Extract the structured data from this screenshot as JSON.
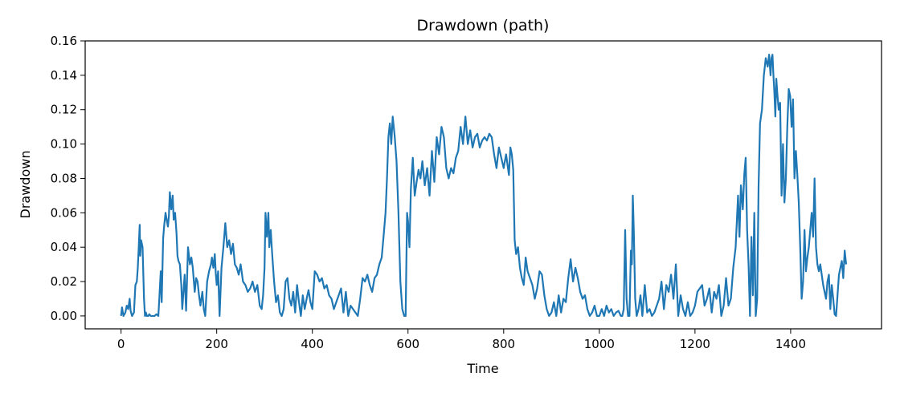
{
  "chart_data": {
    "type": "line",
    "title": "Drawdown (path)",
    "xlabel": "Time",
    "ylabel": "Drawdown",
    "xlim": [
      -75,
      1590
    ],
    "ylim": [
      -0.0075,
      0.16
    ],
    "xticks": [
      0,
      200,
      400,
      600,
      800,
      1000,
      1200,
      1400
    ],
    "yticks": [
      0.0,
      0.02,
      0.04,
      0.06,
      0.08,
      0.1,
      0.12,
      0.14,
      0.16
    ],
    "ytick_labels": [
      "0.00",
      "0.02",
      "0.04",
      "0.06",
      "0.08",
      "0.10",
      "0.12",
      "0.14",
      "0.16"
    ],
    "grid": false,
    "color": "#1f77b4",
    "series": [
      {
        "x": [
          0,
          2,
          5,
          9,
          12,
          15,
          18,
          20,
          23,
          27,
          30,
          33,
          35,
          37,
          39,
          40,
          42,
          45,
          48,
          50,
          52,
          54,
          57,
          59,
          62,
          66,
          70,
          74,
          78,
          80,
          83,
          85,
          88,
          90,
          93,
          96,
          98,
          100,
          102,
          105,
          108,
          110,
          113,
          116,
          118,
          120,
          123,
          126,
          128,
          130,
          133,
          136,
          140,
          144,
          147,
          150,
          154,
          157,
          160,
          163,
          166,
          170,
          173,
          176,
          180,
          184,
          188,
          190,
          193,
          196,
          198,
          200,
          203,
          206,
          210,
          214,
          218,
          222,
          226,
          230,
          234,
          238,
          242,
          246,
          250,
          255,
          260,
          265,
          270,
          275,
          280,
          285,
          290,
          294,
          297,
          300,
          302,
          305,
          308,
          310,
          313,
          316,
          320,
          324,
          328,
          332,
          336,
          340,
          344,
          348,
          352,
          356,
          360,
          364,
          368,
          372,
          376,
          380,
          384,
          388,
          392,
          396,
          400,
          405,
          410,
          415,
          420,
          425,
          430,
          435,
          440,
          445,
          450,
          455,
          460,
          465,
          470,
          475,
          480,
          485,
          490,
          495,
          500,
          505,
          510,
          515,
          520,
          525,
          530,
          535,
          540,
          545,
          550,
          553,
          556,
          559,
          562,
          565,
          568,
          572,
          576,
          580,
          584,
          588,
          592,
          595,
          598,
          600,
          603,
          606,
          610,
          614,
          618,
          622,
          626,
          630,
          635,
          640,
          645,
          650,
          655,
          660,
          665,
          670,
          675,
          680,
          685,
          690,
          695,
          700,
          705,
          710,
          715,
          720,
          725,
          730,
          735,
          740,
          745,
          750,
          755,
          760,
          765,
          770,
          775,
          780,
          785,
          790,
          795,
          800,
          805,
          808,
          811,
          814,
          817,
          820,
          823,
          826,
          830,
          834,
          838,
          842,
          846,
          850,
          855,
          860,
          865,
          870,
          875,
          880,
          885,
          890,
          895,
          900,
          905,
          910,
          915,
          920,
          925,
          930,
          935,
          940,
          945,
          950,
          955,
          960,
          965,
          970,
          975,
          980,
          985,
          990,
          995,
          1000,
          1005,
          1010,
          1015,
          1020,
          1025,
          1030,
          1035,
          1040,
          1045,
          1048,
          1051,
          1054,
          1057,
          1060,
          1063,
          1066,
          1068,
          1070,
          1072,
          1075,
          1078,
          1082,
          1086,
          1090,
          1095,
          1100,
          1105,
          1110,
          1115,
          1120,
          1125,
          1130,
          1135,
          1140,
          1145,
          1150,
          1155,
          1160,
          1165,
          1170,
          1175,
          1180,
          1185,
          1190,
          1195,
          1200,
          1205,
          1210,
          1215,
          1220,
          1225,
          1230,
          1235,
          1240,
          1245,
          1250,
          1255,
          1260,
          1265,
          1270,
          1275,
          1280,
          1285,
          1290,
          1293,
          1296,
          1300,
          1303,
          1306,
          1309,
          1312,
          1315,
          1318,
          1321,
          1324,
          1327,
          1330,
          1333,
          1336,
          1340,
          1344,
          1348,
          1352,
          1355,
          1358,
          1360,
          1362,
          1364,
          1366,
          1368,
          1370,
          1372,
          1375,
          1378,
          1381,
          1384,
          1387,
          1390,
          1393,
          1396,
          1399,
          1402,
          1405,
          1408,
          1411,
          1414,
          1417,
          1420,
          1423,
          1426,
          1429,
          1432,
          1435,
          1438,
          1441,
          1444,
          1447,
          1450,
          1453,
          1456,
          1459,
          1462,
          1465,
          1468,
          1471,
          1474,
          1477,
          1480,
          1483,
          1486,
          1489,
          1492,
          1495,
          1498,
          1501,
          1504,
          1507,
          1510,
          1513,
          1516
        ],
        "values": [
          0.0,
          0.005,
          0.0,
          0.002,
          0.006,
          0.004,
          0.01,
          0.003,
          0.0,
          0.002,
          0.018,
          0.02,
          0.028,
          0.04,
          0.053,
          0.035,
          0.044,
          0.04,
          0.01,
          0.0,
          0.002,
          0.0,
          0.0,
          0.001,
          0.0,
          0.0,
          0.0,
          0.001,
          0.0,
          0.01,
          0.026,
          0.008,
          0.045,
          0.052,
          0.06,
          0.055,
          0.052,
          0.058,
          0.072,
          0.062,
          0.07,
          0.056,
          0.06,
          0.048,
          0.035,
          0.032,
          0.03,
          0.018,
          0.004,
          0.012,
          0.024,
          0.003,
          0.04,
          0.03,
          0.034,
          0.028,
          0.014,
          0.022,
          0.02,
          0.012,
          0.006,
          0.014,
          0.004,
          0.0,
          0.02,
          0.026,
          0.03,
          0.034,
          0.028,
          0.036,
          0.025,
          0.018,
          0.026,
          0.0,
          0.028,
          0.04,
          0.054,
          0.04,
          0.044,
          0.036,
          0.042,
          0.03,
          0.028,
          0.024,
          0.03,
          0.02,
          0.018,
          0.014,
          0.016,
          0.02,
          0.014,
          0.018,
          0.006,
          0.004,
          0.012,
          0.028,
          0.06,
          0.046,
          0.06,
          0.04,
          0.05,
          0.036,
          0.02,
          0.008,
          0.012,
          0.002,
          0.0,
          0.004,
          0.02,
          0.022,
          0.01,
          0.006,
          0.014,
          0.002,
          0.018,
          0.008,
          0.0,
          0.012,
          0.004,
          0.01,
          0.015,
          0.008,
          0.004,
          0.026,
          0.024,
          0.02,
          0.022,
          0.016,
          0.018,
          0.012,
          0.01,
          0.004,
          0.008,
          0.012,
          0.016,
          0.002,
          0.014,
          0.0,
          0.006,
          0.004,
          0.002,
          0.0,
          0.01,
          0.022,
          0.02,
          0.024,
          0.018,
          0.014,
          0.022,
          0.024,
          0.03,
          0.034,
          0.05,
          0.06,
          0.08,
          0.104,
          0.112,
          0.1,
          0.116,
          0.105,
          0.09,
          0.06,
          0.02,
          0.004,
          0.0,
          0.0,
          0.06,
          0.055,
          0.04,
          0.074,
          0.092,
          0.07,
          0.078,
          0.085,
          0.08,
          0.09,
          0.076,
          0.086,
          0.07,
          0.096,
          0.078,
          0.104,
          0.094,
          0.11,
          0.104,
          0.086,
          0.08,
          0.086,
          0.083,
          0.092,
          0.096,
          0.11,
          0.1,
          0.116,
          0.1,
          0.108,
          0.098,
          0.104,
          0.106,
          0.098,
          0.102,
          0.104,
          0.102,
          0.106,
          0.104,
          0.094,
          0.086,
          0.098,
          0.092,
          0.086,
          0.094,
          0.088,
          0.082,
          0.098,
          0.094,
          0.085,
          0.044,
          0.036,
          0.04,
          0.028,
          0.022,
          0.018,
          0.034,
          0.026,
          0.022,
          0.018,
          0.01,
          0.016,
          0.026,
          0.024,
          0.012,
          0.004,
          0.0,
          0.002,
          0.008,
          0.0,
          0.012,
          0.002,
          0.01,
          0.008,
          0.022,
          0.033,
          0.02,
          0.028,
          0.022,
          0.014,
          0.01,
          0.012,
          0.004,
          0.0,
          0.002,
          0.006,
          0.0,
          0.0,
          0.004,
          0.0,
          0.006,
          0.002,
          0.004,
          0.0,
          0.002,
          0.003,
          0.0,
          0.0,
          0.004,
          0.05,
          0.01,
          0.0,
          0.0,
          0.038,
          0.03,
          0.07,
          0.05,
          0.01,
          0.0,
          0.004,
          0.012,
          0.0,
          0.018,
          0.002,
          0.004,
          0.0,
          0.002,
          0.006,
          0.01,
          0.02,
          0.004,
          0.018,
          0.014,
          0.024,
          0.01,
          0.03,
          0.0,
          0.012,
          0.004,
          0.0,
          0.008,
          0.0,
          0.002,
          0.006,
          0.014,
          0.016,
          0.018,
          0.006,
          0.01,
          0.016,
          0.002,
          0.014,
          0.01,
          0.018,
          0.0,
          0.006,
          0.022,
          0.006,
          0.01,
          0.028,
          0.04,
          0.07,
          0.046,
          0.076,
          0.062,
          0.082,
          0.092,
          0.05,
          0.03,
          0.0,
          0.046,
          0.012,
          0.06,
          0.0,
          0.01,
          0.076,
          0.112,
          0.12,
          0.14,
          0.15,
          0.145,
          0.152,
          0.14,
          0.15,
          0.152,
          0.14,
          0.13,
          0.116,
          0.138,
          0.13,
          0.12,
          0.124,
          0.07,
          0.1,
          0.066,
          0.08,
          0.11,
          0.132,
          0.128,
          0.11,
          0.126,
          0.08,
          0.096,
          0.082,
          0.066,
          0.04,
          0.01,
          0.02,
          0.05,
          0.026,
          0.034,
          0.04,
          0.05,
          0.06,
          0.046,
          0.08,
          0.04,
          0.03,
          0.026,
          0.03,
          0.024,
          0.018,
          0.014,
          0.01,
          0.02,
          0.024,
          0.004,
          0.018,
          0.01,
          0.001,
          0.0,
          0.012,
          0.024,
          0.028,
          0.032,
          0.022,
          0.038,
          0.03
        ]
      }
    ]
  }
}
